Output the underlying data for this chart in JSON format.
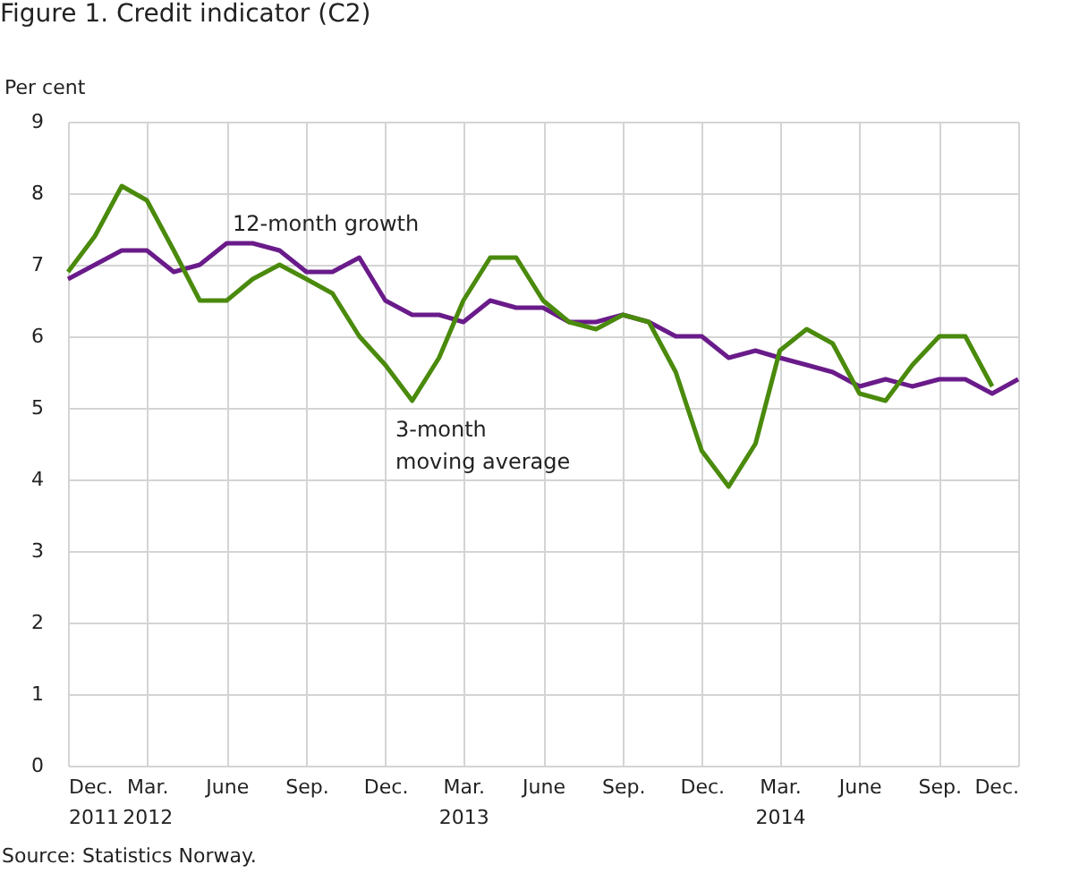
{
  "chart_data": {
    "type": "line",
    "title": "Figure 1. Credit indicator (C2)",
    "ylabel": "Per cent",
    "x": [
      "2011-12",
      "2012-01",
      "2012-02",
      "2012-03",
      "2012-04",
      "2012-05",
      "2012-06",
      "2012-07",
      "2012-08",
      "2012-09",
      "2012-10",
      "2012-11",
      "2012-12",
      "2013-01",
      "2013-02",
      "2013-03",
      "2013-04",
      "2013-05",
      "2013-06",
      "2013-07",
      "2013-08",
      "2013-09",
      "2013-10",
      "2013-11",
      "2013-12",
      "2014-01",
      "2014-02",
      "2014-03",
      "2014-04",
      "2014-05",
      "2014-06",
      "2014-07",
      "2014-08",
      "2014-09",
      "2014-10",
      "2014-11",
      "2014-12"
    ],
    "series": [
      {
        "color": "#6a1b8a",
        "values": [
          6.8,
          7.0,
          7.2,
          7.2,
          6.9,
          7.0,
          7.3,
          7.3,
          7.2,
          6.9,
          6.9,
          7.1,
          6.5,
          6.3,
          6.3,
          6.2,
          6.5,
          6.4,
          6.4,
          6.2,
          6.2,
          6.3,
          6.2,
          6.0,
          6.0,
          5.7,
          5.8,
          5.7,
          5.6,
          5.5,
          5.3,
          5.4,
          5.3,
          5.4,
          5.4,
          5.2,
          5.4
        ]
      },
      {
        "color": "#4a8a0c",
        "values": [
          6.9,
          7.4,
          8.1,
          7.9,
          7.2,
          6.5,
          6.5,
          6.8,
          7.0,
          6.8,
          6.6,
          6.0,
          5.6,
          5.1,
          5.7,
          6.5,
          7.1,
          7.1,
          6.5,
          6.2,
          6.1,
          6.3,
          6.2,
          5.5,
          4.4,
          3.9,
          4.5,
          5.8,
          6.1,
          5.9,
          5.2,
          5.1,
          5.6,
          6.0,
          6.0,
          5.3,
          null
        ]
      }
    ],
    "annotations": [
      "12-month  growth",
      "3-month\nmoving average",
      "Source: Statistics Norway."
    ],
    "xlim": [
      "2011-12",
      "2014-12"
    ],
    "xticks": [
      {
        "value": "2011-12",
        "label": "Dec. 2011"
      },
      {
        "value": "2012-03",
        "label": "Mar. 2012"
      },
      {
        "value": "2012-06",
        "label": "June"
      },
      {
        "value": "2012-09",
        "label": "Sep."
      },
      {
        "value": "2012-12",
        "label": "Dec."
      },
      {
        "value": "2013-03",
        "label": "Mar. 2013"
      },
      {
        "value": "2013-06",
        "label": "June"
      },
      {
        "value": "2013-09",
        "label": "Sep."
      },
      {
        "value": "2013-12",
        "label": "Dec."
      },
      {
        "value": "2014-03",
        "label": "Mar. 2014"
      },
      {
        "value": "2014-06",
        "label": "June"
      },
      {
        "value": "2014-09",
        "label": "Sep."
      },
      {
        "value": "2014-12",
        "label": "Dec."
      }
    ],
    "ylim": [
      0,
      9
    ],
    "yticks": [
      0,
      1,
      2,
      3,
      4,
      5,
      6,
      7,
      8,
      9
    ],
    "grid": true,
    "marker": "none",
    "line_style": "solid"
  }
}
